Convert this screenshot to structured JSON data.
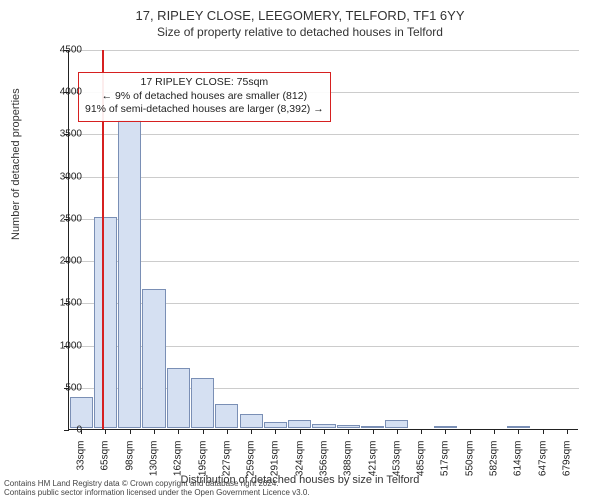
{
  "header": {
    "title1": "17, RIPLEY CLOSE, LEEGOMERY, TELFORD, TF1 6YY",
    "title2": "Size of property relative to detached houses in Telford"
  },
  "axes": {
    "ylabel": "Number of detached properties",
    "xlabel": "Distribution of detached houses by size in Telford"
  },
  "chart": {
    "type": "bar",
    "ylim": [
      0,
      4500
    ],
    "yticks": [
      0,
      500,
      1000,
      1500,
      2000,
      2500,
      3000,
      3500,
      4000,
      4500
    ],
    "ytick_labels": [
      "0",
      "500",
      "1000",
      "1500",
      "2000",
      "2500",
      "3000",
      "3500",
      "4000",
      "4500"
    ],
    "xtick_labels": [
      "33sqm",
      "65sqm",
      "98sqm",
      "130sqm",
      "162sqm",
      "195sqm",
      "227sqm",
      "259sqm",
      "291sqm",
      "324sqm",
      "356sqm",
      "388sqm",
      "421sqm",
      "453sqm",
      "485sqm",
      "517sqm",
      "550sqm",
      "582sqm",
      "614sqm",
      "647sqm",
      "679sqm"
    ],
    "values": [
      370,
      2500,
      3650,
      1650,
      710,
      590,
      280,
      170,
      70,
      90,
      50,
      40,
      20,
      90,
      0,
      20,
      0,
      0,
      10,
      0,
      0
    ],
    "bar_fill": "#d5e0f2",
    "bar_border": "#7a8fb5",
    "grid_color": "#cccccc",
    "background": "#ffffff",
    "reference_line": {
      "index": 1,
      "position": 0.35,
      "color": "#d62020"
    }
  },
  "annotation": {
    "line1": "17 RIPLEY CLOSE: 75sqm",
    "line2": "← 9% of detached houses are smaller (812)",
    "line3": "91% of semi-detached houses are larger (8,392) →"
  },
  "footer": {
    "line1": "Contains HM Land Registry data © Crown copyright and database right 2024.",
    "line2": "Contains public sector information licensed under the Open Government Licence v3.0."
  }
}
